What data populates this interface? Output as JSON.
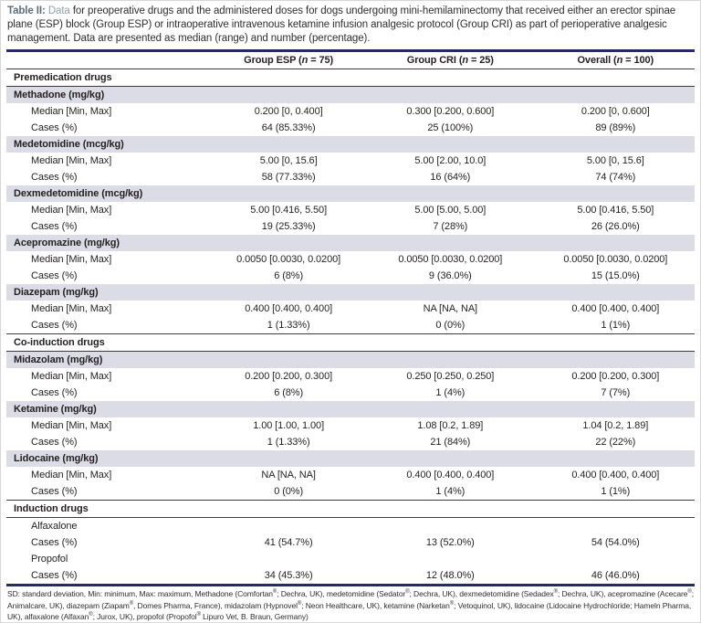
{
  "caption": {
    "label": "Table II:",
    "lead": "Data",
    "text": "for preoperative drugs and the administered doses for dogs undergoing mini-hemilaminectomy that received either an erector spinae plane (ESP) block (Group ESP) or intraoperative intravenous ketamine infusion analgesic protocol (Group CRI) as part of perioperative analgesic management. Data are presented as median (range) and number (percentage)."
  },
  "colors": {
    "thick_rule": "#262b63",
    "band": "#dcdce6",
    "caption_label": "#5d6c79",
    "caption_lead": "#8fa0ab"
  },
  "columns": [
    {
      "pre": "Group ESP (",
      "n": "n",
      "post": " = 75)"
    },
    {
      "pre": "Group CRI (",
      "n": "n",
      "post": " = 25)"
    },
    {
      "pre": "Overall (",
      "n": "n",
      "post": " = 100)"
    }
  ],
  "body": [
    {
      "type": "section",
      "label": "Premedication drugs"
    },
    {
      "type": "drug",
      "label": "Methadone (mg/kg)"
    },
    {
      "type": "data",
      "label": "Median [Min, Max]",
      "values": [
        "0.200 [0, 0.400]",
        "0.300 [0.200, 0.600]",
        "0.200 [0, 0.600]"
      ]
    },
    {
      "type": "data",
      "label": "Cases (%)",
      "values": [
        "64 (85.33%)",
        "25 (100%)",
        "89 (89%)"
      ]
    },
    {
      "type": "drug",
      "label": "Medetomidine (mcg/kg)"
    },
    {
      "type": "data",
      "label": "Median [Min, Max]",
      "values": [
        "5.00 [0, 15.6]",
        "5.00 [2.00, 10.0]",
        "5.00 [0, 15.6]"
      ]
    },
    {
      "type": "data",
      "label": "Cases (%)",
      "values": [
        "58 (77.33%)",
        "16 (64%)",
        "74 (74%)"
      ]
    },
    {
      "type": "drug",
      "label": "Dexmedetomidine (mcg/kg)"
    },
    {
      "type": "data",
      "label": "Median [Min, Max]",
      "values": [
        "5.00 [0.416, 5.50]",
        "5.00 [5.00, 5.00]",
        "5.00 [0.416, 5.50]"
      ]
    },
    {
      "type": "data",
      "label": "Cases (%)",
      "values": [
        "19 (25.33%)",
        "7 (28%)",
        "26 (26.0%)"
      ]
    },
    {
      "type": "drug",
      "label": "Acepromazine (mg/kg)"
    },
    {
      "type": "data",
      "label": "Median [Min, Max]",
      "values": [
        "0.0050 [0.0030, 0.0200]",
        "0.0050 [0.0030, 0.0200]",
        "0.0050 [0.0030, 0.0200]"
      ]
    },
    {
      "type": "data",
      "label": "Cases (%)",
      "values": [
        "6 (8%)",
        "9 (36.0%)",
        "15 (15.0%)"
      ]
    },
    {
      "type": "drug",
      "label": "Diazepam (mg/kg)"
    },
    {
      "type": "data",
      "label": "Median [Min, Max]",
      "values": [
        "0.400 [0.400, 0.400]",
        "NA [NA, NA]",
        "0.400 [0.400, 0.400]"
      ]
    },
    {
      "type": "data",
      "label": "Cases (%)",
      "values": [
        "1 (1.33%)",
        "0 (0%)",
        "1 (1%)"
      ]
    },
    {
      "type": "section",
      "label": "Co-induction drugs"
    },
    {
      "type": "drug",
      "label": "Midazolam (mg/kg)"
    },
    {
      "type": "data",
      "label": "Median [Min, Max]",
      "values": [
        "0.200 [0.200, 0.300]",
        "0.250 [0.250, 0.250]",
        "0.200 [0.200, 0.300]"
      ]
    },
    {
      "type": "data",
      "label": "Cases (%)",
      "values": [
        "6 (8%)",
        "1 (4%)",
        "7 (7%)"
      ]
    },
    {
      "type": "drug",
      "label": "Ketamine (mg/kg)"
    },
    {
      "type": "data",
      "label": "Median [Min, Max]",
      "values": [
        "1.00 [1.00, 1.00]",
        "1.08 [0.2, 1.89]",
        "1.04 [0.2, 1.89]"
      ]
    },
    {
      "type": "data",
      "label": "Cases (%)",
      "values": [
        "1 (1.33%)",
        "21 (84%)",
        "22 (22%)"
      ]
    },
    {
      "type": "drug",
      "label": "Lidocaine (mg/kg)"
    },
    {
      "type": "data",
      "label": "Median [Min, Max]",
      "values": [
        "NA [NA, NA]",
        "0.400 [0.400, 0.400]",
        "0.400 [0.400, 0.400]"
      ]
    },
    {
      "type": "data",
      "label": "Cases (%)",
      "values": [
        "0 (0%)",
        "1 (4%)",
        "1 (1%)"
      ]
    },
    {
      "type": "section",
      "label": "Induction drugs"
    },
    {
      "type": "data",
      "label": "Alfaxalone",
      "values": [
        "",
        "",
        ""
      ]
    },
    {
      "type": "data",
      "label": "Cases (%)",
      "values": [
        "41 (54.7%)",
        "13 (52.0%)",
        "54 (54.0%)"
      ]
    },
    {
      "type": "data",
      "label": "Propofol",
      "values": [
        "",
        "",
        ""
      ]
    },
    {
      "type": "data",
      "label": "Cases (%)",
      "values": [
        "34 (45.3%)",
        "12 (48.0%)",
        "46 (46.0%)"
      ]
    }
  ],
  "footnote": "SD: standard deviation, Min: minimum, Max: maximum, Methadone (Comfortan®; Dechra, UK), medetomidine (Sedator®; Dechra, UK), dexmedetomidine (Sedadex®; Dechra, UK), acepromazine (Acecare®; Animalcare, UK), diazepam (Ziapam®, Domes Pharma, France), midazolam (Hypnovel®; Neon Healthcare, UK), ketamine (Narketan®; Vetoquinol, UK), lidocaine (Lidocaine Hydrochloride; Hameln Pharma, UK), alfaxalone (Alfaxan®; Jurox, UK), propofol (Propofol® Lipuro Vet, B. Braun, Germany)"
}
